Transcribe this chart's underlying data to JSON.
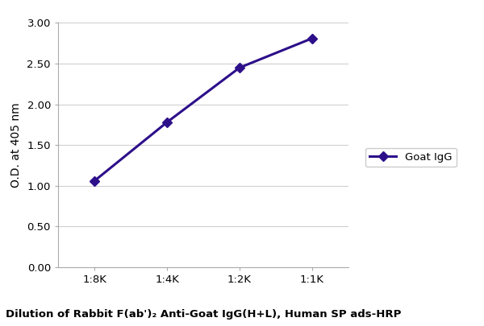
{
  "x_labels": [
    "1:8K",
    "1:4K",
    "1:2K",
    "1:1K"
  ],
  "x_values": [
    0,
    1,
    2,
    3
  ],
  "y_values": [
    1.06,
    1.78,
    2.45,
    2.81
  ],
  "y_lim": [
    0.0,
    3.0
  ],
  "y_ticks": [
    0.0,
    0.5,
    1.0,
    1.5,
    2.0,
    2.5,
    3.0
  ],
  "line_color": "#2d0f8a",
  "marker_color": "#2d0f8a",
  "marker_style": "D",
  "marker_size": 6,
  "line_width": 2.2,
  "ylabel": "O.D. at 405 nm",
  "xlabel": "Dilution of Rabbit F(ab')₂ Anti-Goat IgG(H+L), Human SP ads-HRP",
  "legend_label": "Goat IgG",
  "background_color": "#ffffff",
  "plot_bg_color": "#ffffff",
  "grid_color": "#d0d0d0",
  "ylabel_fontsize": 10,
  "xlabel_fontsize": 9.5,
  "tick_fontsize": 9.5,
  "legend_fontsize": 9.5,
  "spine_color": "#aaaaaa"
}
